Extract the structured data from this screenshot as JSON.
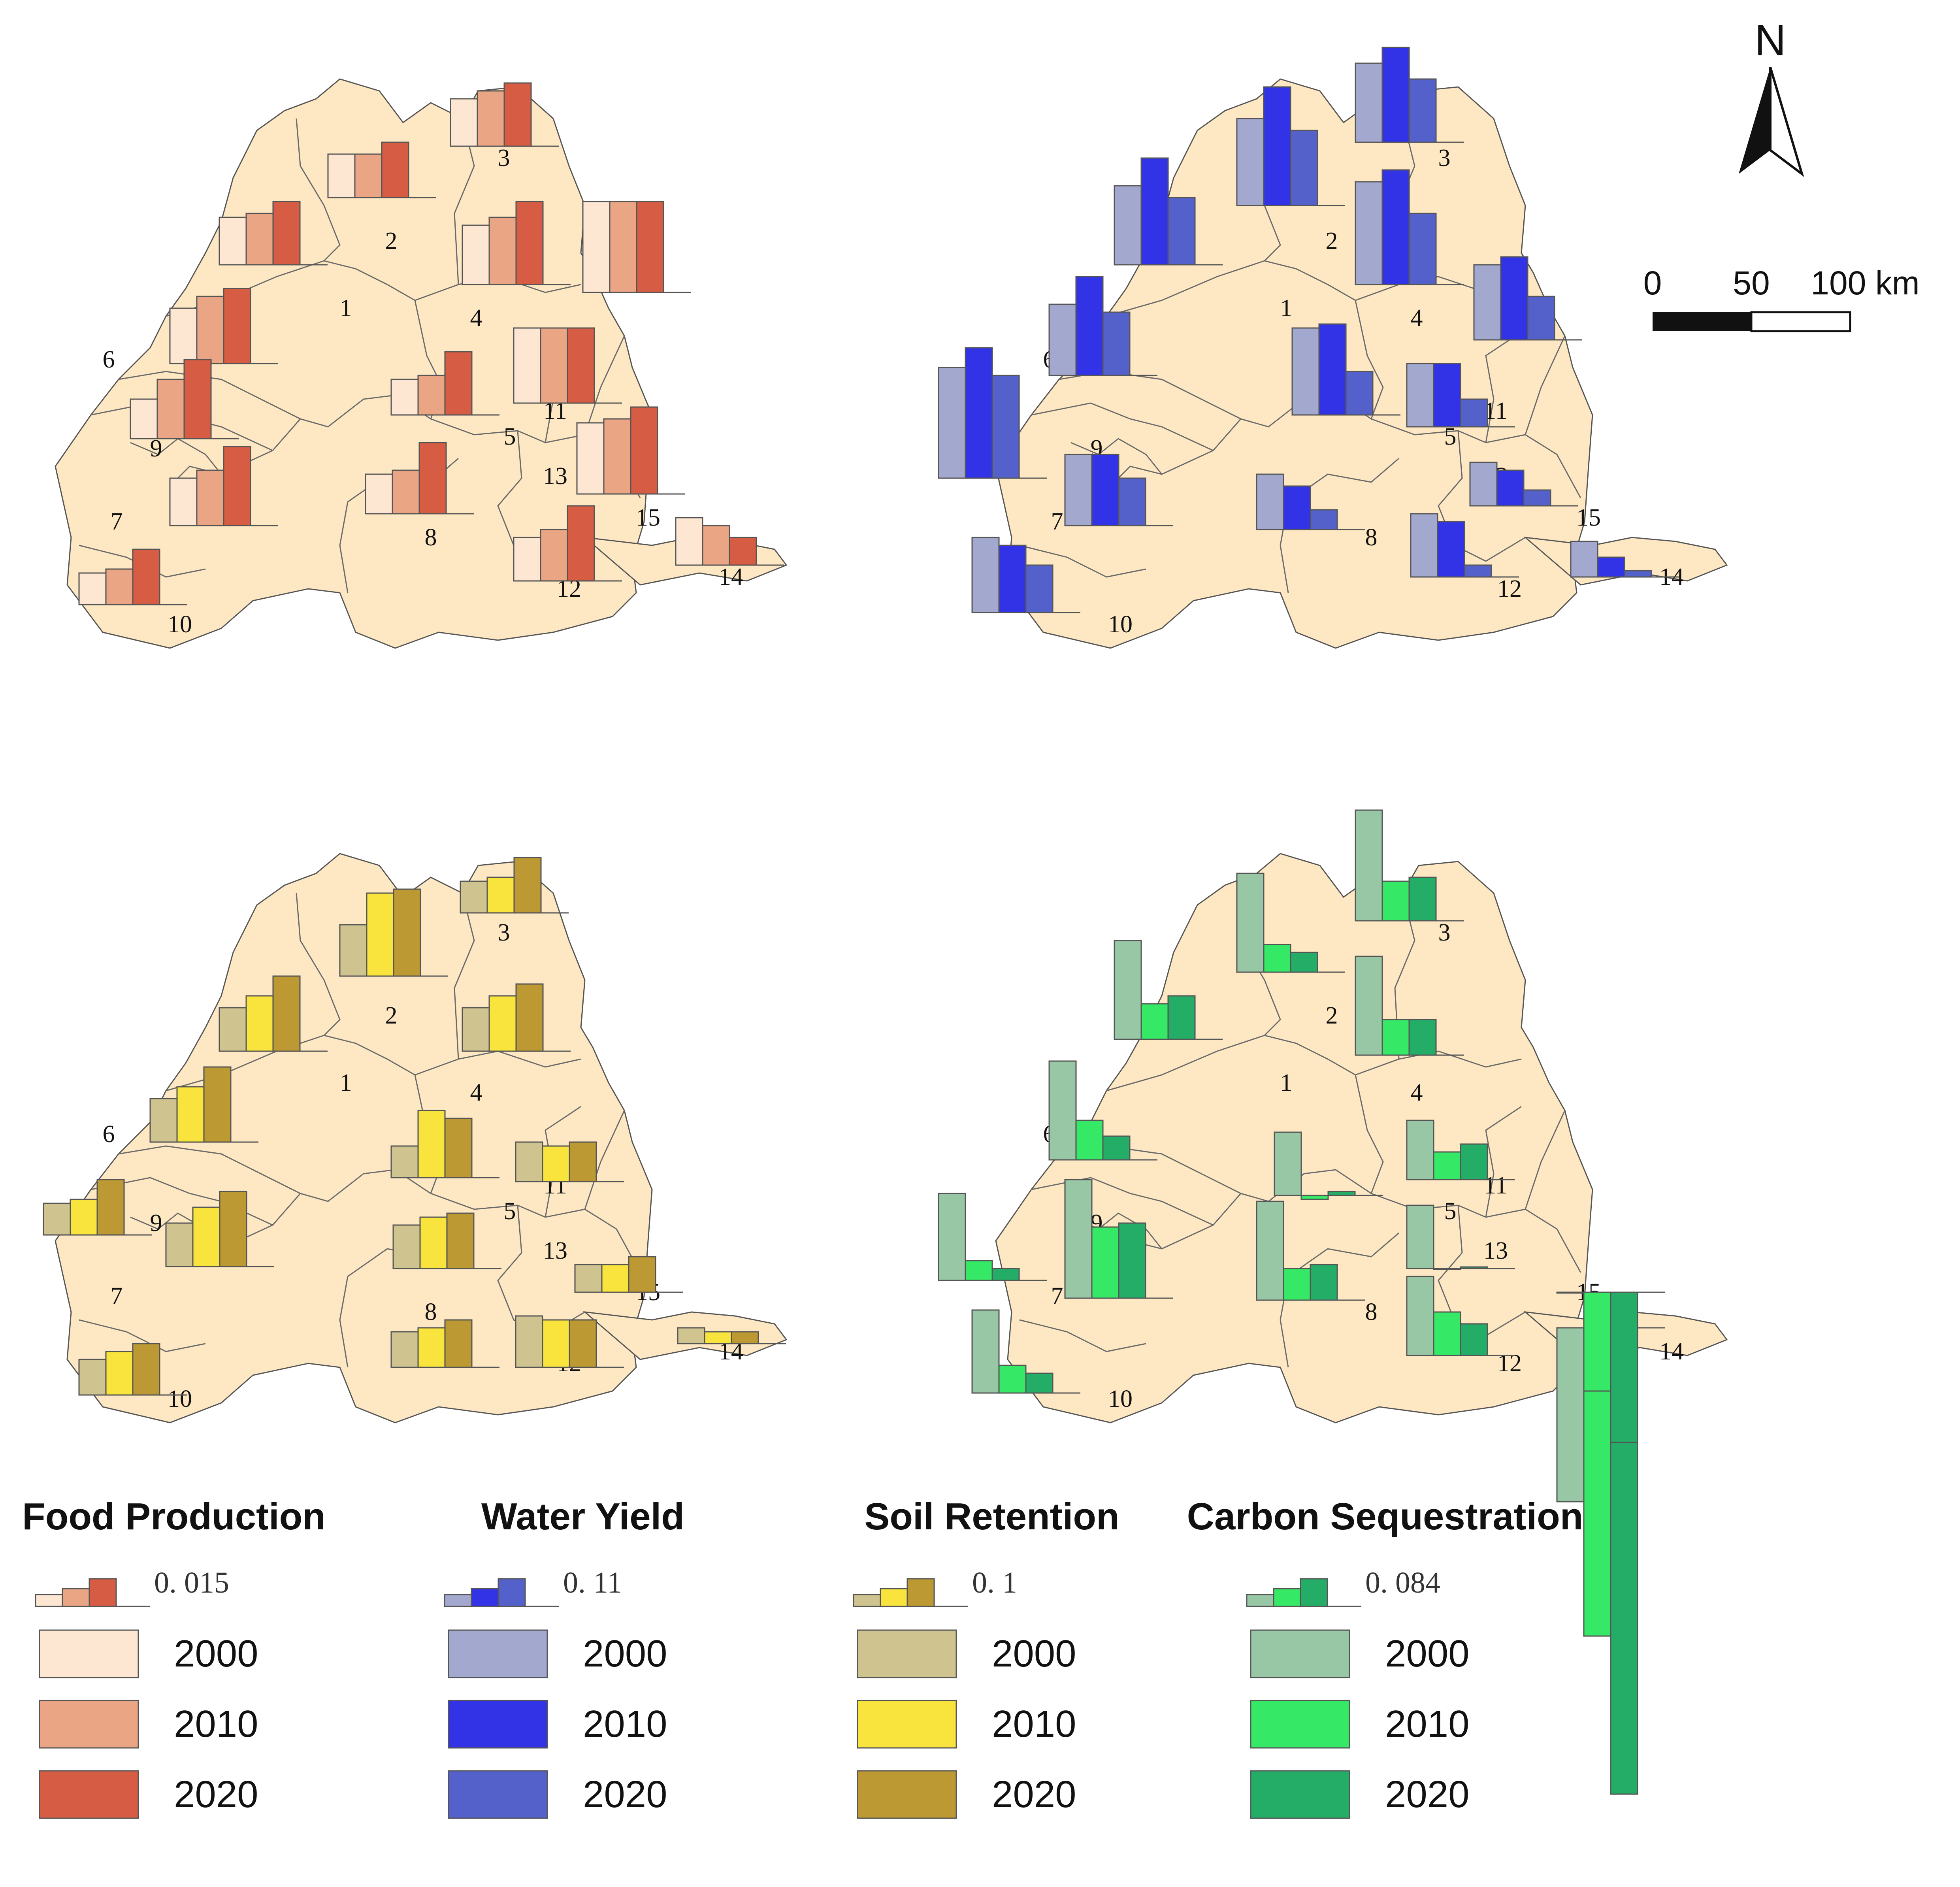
{
  "north_label": "N",
  "scale_bar": {
    "labels": [
      "0",
      "50",
      "100 km"
    ]
  },
  "years": [
    "2000",
    "2010",
    "2020"
  ],
  "region_labels": [
    "1",
    "2",
    "3",
    "4",
    "5",
    "6",
    "7",
    "8",
    "9",
    "10",
    "11",
    "12",
    "13",
    "14",
    "15"
  ],
  "panels": [
    {
      "id": "food",
      "title": "Food Production",
      "scale_value": "0. 015",
      "colors": [
        "#fde7d3",
        "#eaa585",
        "#d65c43"
      ],
      "bars": {
        "1": [
          0.6,
          0.65,
          0.8
        ],
        "2": [
          0.55,
          0.55,
          0.7
        ],
        "3": [
          0.6,
          0.7,
          0.8
        ],
        "4": [
          0.75,
          0.85,
          1.05
        ],
        "5": [
          0.45,
          0.5,
          0.8
        ],
        "6": [
          0.7,
          0.85,
          0.95
        ],
        "7": [
          0.6,
          0.7,
          1.0
        ],
        "8": [
          0.5,
          0.55,
          0.9
        ],
        "9": [
          0.5,
          0.75,
          1.0
        ],
        "10": [
          0.4,
          0.45,
          0.7
        ],
        "11": [
          0.95,
          0.95,
          0.95
        ],
        "12": [
          0.55,
          0.65,
          0.95
        ],
        "13": [
          1.15,
          1.15,
          1.15
        ],
        "14": [
          0.6,
          0.5,
          0.35
        ],
        "15": [
          0.9,
          0.95,
          1.1
        ]
      }
    },
    {
      "id": "water",
      "title": "Water Yield",
      "scale_value": "0. 11",
      "colors": [
        "#a3a8cf",
        "#3232e6",
        "#5561cb"
      ],
      "bars": {
        "1": [
          1.0,
          1.35,
          0.85
        ],
        "2": [
          1.1,
          1.5,
          0.95
        ],
        "3": [
          1.0,
          1.2,
          0.8
        ],
        "4": [
          1.3,
          1.45,
          0.9
        ],
        "5": [
          1.1,
          1.15,
          0.55
        ],
        "6": [
          0.9,
          1.25,
          0.8
        ],
        "7": [
          1.4,
          1.65,
          1.3
        ],
        "8": [
          0.7,
          0.55,
          0.25
        ],
        "9": [
          0.9,
          0.9,
          0.6
        ],
        "10": [
          0.95,
          0.85,
          0.6
        ],
        "11": [
          0.8,
          0.8,
          0.35
        ],
        "12": [
          0.8,
          0.7,
          0.15
        ],
        "13": [
          0.95,
          1.05,
          0.55
        ],
        "14": [
          0.45,
          0.25,
          0.08
        ],
        "15": [
          0.55,
          0.45,
          0.2
        ]
      }
    },
    {
      "id": "soil",
      "title": "Soil Retention",
      "scale_value": "0. 1",
      "colors": [
        "#cfc48f",
        "#f8e43c",
        "#bc9932"
      ],
      "bars": {
        "1": [
          0.55,
          0.7,
          0.95
        ],
        "2": [
          0.65,
          1.05,
          1.1
        ],
        "3": [
          0.4,
          0.45,
          0.7
        ],
        "4": [
          0.55,
          0.7,
          0.85
        ],
        "5": [
          0.4,
          0.85,
          0.75
        ],
        "6": [
          0.55,
          0.7,
          0.95
        ],
        "7": [
          0.4,
          0.45,
          0.7
        ],
        "8": [
          0.55,
          0.65,
          0.7
        ],
        "9": [
          0.55,
          0.75,
          0.95
        ],
        "10": [
          0.45,
          0.55,
          0.65
        ],
        "11": [
          0.5,
          0.45,
          0.5
        ],
        "12": [
          0.65,
          0.6,
          0.6
        ],
        "13": [
          0.45,
          0.5,
          0.6
        ],
        "14": [
          0.2,
          0.15,
          0.15
        ],
        "15": [
          0.35,
          0.35,
          0.45
        ]
      }
    },
    {
      "id": "carbon",
      "title": "Carbon Sequestration",
      "scale_value": "0. 084",
      "colors": [
        "#97c7a5",
        "#35e865",
        "#23ad67"
      ],
      "bars": {
        "1": [
          1.25,
          0.45,
          0.55
        ],
        "2": [
          1.25,
          0.35,
          0.25
        ],
        "3": [
          1.4,
          0.5,
          0.55
        ],
        "4": [
          1.25,
          0.45,
          0.45
        ],
        "5": [
          0.8,
          -0.05,
          0.05
        ],
        "6": [
          1.25,
          0.5,
          0.3
        ],
        "7": [
          1.1,
          0.25,
          0.15
        ],
        "8": [
          1.25,
          0.4,
          0.45
        ],
        "9": [
          1.5,
          0.9,
          0.95
        ],
        "10": [
          1.05,
          0.35,
          0.25
        ],
        "11": [
          0.75,
          0.35,
          0.45
        ],
        "12": [
          1.0,
          0.55,
          0.4
        ],
        "13": [
          0.8,
          0.0,
          0.02
        ],
        "14": [
          -2.2,
          -3.9,
          -5.9
        ],
        "15": [
          0.0,
          -1.25,
          -1.9
        ]
      }
    }
  ]
}
